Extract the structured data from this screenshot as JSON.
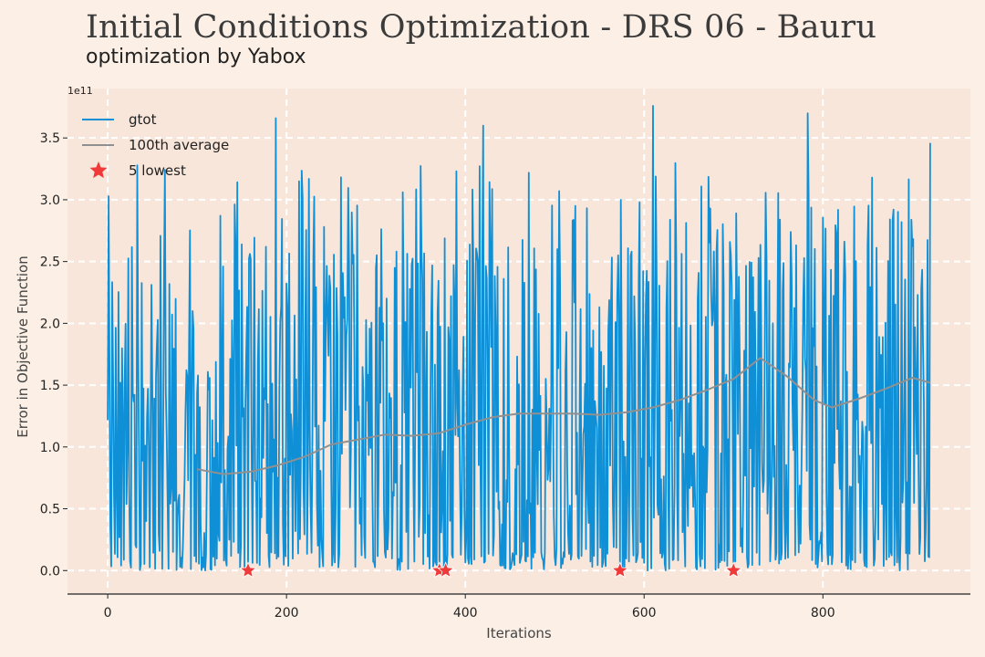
{
  "header": {
    "title": "Initial Conditions Optimization - DRS 06 - Bauru",
    "subtitle": "optimization by Yabox"
  },
  "chart_data": {
    "type": "line",
    "xlabel": "Iterations",
    "ylabel": "Error in Objective Function",
    "y_scale_label": "1e11",
    "xlim": [
      -45,
      965
    ],
    "ylim": [
      -0.19,
      3.9
    ],
    "x_ticks": [
      0,
      200,
      400,
      600,
      800
    ],
    "y_ticks": [
      0.0,
      0.5,
      1.0,
      1.5,
      2.0,
      2.5,
      3.0,
      3.5
    ],
    "grid": true,
    "legend_position": "top-left",
    "n_iterations": 921,
    "series": [
      {
        "name": "gtot",
        "color": "#0f8fd6",
        "style": "line",
        "description_of_values": "highly oscillating values between ~0.0 and ~3.7 (x1e11) over iterations 0-920",
        "peaks": [
          {
            "x": 188,
            "y": 3.66
          },
          {
            "x": 610,
            "y": 3.76
          },
          {
            "x": 783,
            "y": 3.7
          },
          {
            "x": 420,
            "y": 3.6
          },
          {
            "x": 920,
            "y": 3.46
          }
        ]
      },
      {
        "name": "100th average",
        "color": "#909090",
        "style": "line",
        "x": [
          100,
          130,
          160,
          190,
          220,
          250,
          280,
          310,
          340,
          370,
          400,
          430,
          460,
          490,
          520,
          550,
          580,
          610,
          640,
          670,
          700,
          730,
          760,
          790,
          810,
          840,
          870,
          900,
          920
        ],
        "y": [
          0.82,
          0.78,
          0.8,
          0.85,
          0.92,
          1.02,
          1.06,
          1.1,
          1.09,
          1.11,
          1.18,
          1.24,
          1.27,
          1.27,
          1.27,
          1.26,
          1.28,
          1.32,
          1.38,
          1.46,
          1.55,
          1.72,
          1.57,
          1.38,
          1.32,
          1.39,
          1.47,
          1.56,
          1.52
        ]
      },
      {
        "name": "5 lowest",
        "color": "#f03a3a",
        "style": "star-markers",
        "x": [
          157,
          371,
          378,
          573,
          700
        ],
        "y": [
          0.0,
          0.0,
          0.0,
          0.0,
          0.0
        ]
      }
    ]
  }
}
